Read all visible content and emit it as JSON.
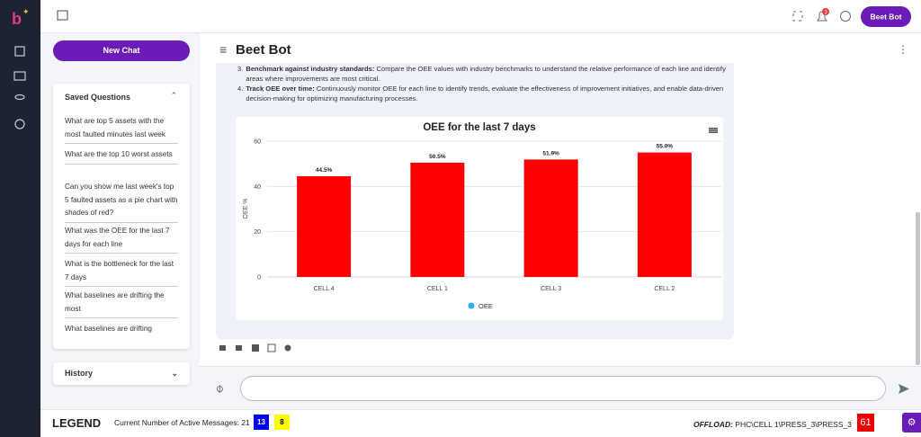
{
  "topbar": {
    "notifications": 3,
    "user_button": "Beet Bot"
  },
  "sidebar": {
    "new_chat": "New Chat",
    "saved_questions": {
      "title": "Saved Questions",
      "items": [
        "What are top 5 assets with the most faulted minutes last week",
        "What are the top 10 worst assets",
        "Can you show me last week's top 5 faulted assets as a pie chart with shades of red?",
        "What was the OEE for the last 7 days for each line",
        "What is the bottleneck for the last 7 days",
        "What baselines are drifting the most",
        "What baselines are drifting"
      ]
    },
    "history": "History"
  },
  "chat": {
    "title": "Beet Bot",
    "message": {
      "items": [
        {
          "marker": "3.",
          "heading": "Benchmark against industry standards:",
          "text": "Compare the OEE values with industry benchmarks to understand the relative performance of each line and identify areas where improvements are most critical."
        },
        {
          "marker": "4.",
          "heading": "Track OEE over time:",
          "text": "Continuously monitor OEE for each line to identify trends, evaluate the effectiveness of improvement initiatives, and enable data-driven decision-making for optimizing manufacturing processes."
        }
      ]
    },
    "chart_data": {
      "type": "bar",
      "title": "OEE for the last 7 days",
      "y_label": "OEE %",
      "categories": [
        "CELL 4",
        "CELL 1",
        "CELL 3",
        "CELL 2"
      ],
      "series": [
        {
          "name": "OEE",
          "color": "#ff0000",
          "legend_color": "#2caffe",
          "values": [
            44.5,
            50.5,
            51.9,
            55.0
          ],
          "value_labels": [
            "44.5%",
            "50.5%",
            "51.9%",
            "55.0%"
          ]
        }
      ],
      "ylim": [
        0,
        60
      ],
      "yticks": [
        0,
        20,
        40,
        60
      ],
      "grid": true
    },
    "input_placeholder": ""
  },
  "footer": {
    "legend": "LEGEND",
    "active_messages_label": "Current Number of Active Messages:",
    "active_messages": 21,
    "badges": [
      13,
      8
    ],
    "offload_label": "OFFLOAD:",
    "offload_path": "PHC\\CELL 1\\PRESS_3\\PRESS_3",
    "offload_count": 61
  }
}
